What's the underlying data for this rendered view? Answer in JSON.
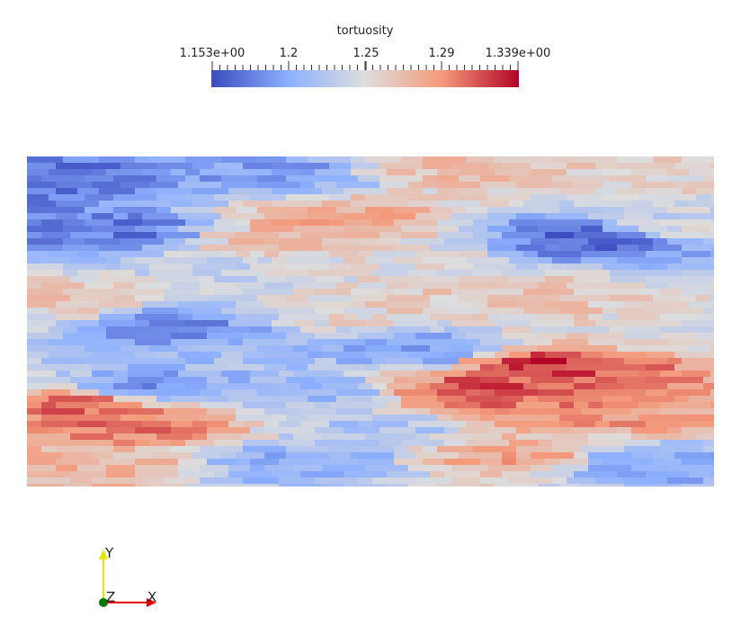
{
  "colorbar": {
    "title": "tortuosity",
    "labels": [
      "1.153e+00",
      "1.2",
      "1.25",
      "1.29",
      "1.339e+00"
    ],
    "label_values": [
      1.153,
      1.2,
      1.25,
      1.29,
      1.339
    ],
    "range": [
      1.153,
      1.339
    ],
    "colormap": "Cool to Warm",
    "colors": [
      "#3b4cc0",
      "#8db0fe",
      "#dddddd",
      "#f49a7b",
      "#b40426"
    ]
  },
  "axes": {
    "y_label": "Y",
    "z_label": "Z",
    "x_label": "X",
    "y_color": "#e6e600",
    "x_color": "#e00000",
    "z_color": "#007a00"
  }
}
